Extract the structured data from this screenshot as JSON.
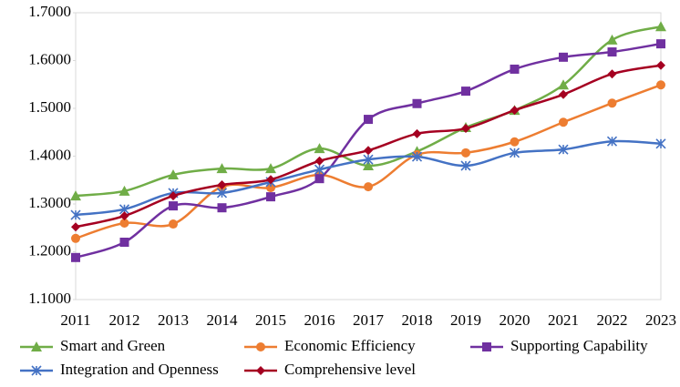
{
  "chart_data": {
    "type": "line",
    "categories": [
      "2011",
      "2012",
      "2013",
      "2014",
      "2015",
      "2016",
      "2017",
      "2018",
      "2019",
      "2020",
      "2021",
      "2022",
      "2023"
    ],
    "ylim": [
      1.1,
      1.7
    ],
    "yticks": [
      {
        "value": 1.1,
        "label": "1.1000"
      },
      {
        "value": 1.2,
        "label": "1.2000"
      },
      {
        "value": 1.3,
        "label": "1.3000"
      },
      {
        "value": 1.4,
        "label": "1.4000"
      },
      {
        "value": 1.5,
        "label": "1.5000"
      },
      {
        "value": 1.6,
        "label": "1.6000"
      },
      {
        "value": 1.7,
        "label": "1.7000"
      }
    ],
    "grid": false,
    "smooth": true,
    "legend": "bottom",
    "series": [
      {
        "name": "Smart and Green",
        "color": "#70ad47",
        "marker": "triangle",
        "values": [
          1.317,
          1.327,
          1.361,
          1.374,
          1.374,
          1.416,
          1.38,
          1.41,
          1.46,
          1.496,
          1.549,
          1.643,
          1.671
        ]
      },
      {
        "name": "Economic Efficiency",
        "color": "#ed7d31",
        "marker": "circle",
        "values": [
          1.228,
          1.26,
          1.258,
          1.336,
          1.334,
          1.361,
          1.336,
          1.403,
          1.407,
          1.43,
          1.471,
          1.511,
          1.549
        ]
      },
      {
        "name": "Supporting Capability",
        "color": "#7030a0",
        "marker": "square",
        "values": [
          1.188,
          1.22,
          1.296,
          1.292,
          1.315,
          1.353,
          1.477,
          1.51,
          1.536,
          1.582,
          1.607,
          1.618,
          1.635
        ]
      },
      {
        "name": "Integration and Openness",
        "color": "#4472c4",
        "marker": "star",
        "values": [
          1.277,
          1.289,
          1.323,
          1.323,
          1.346,
          1.372,
          1.393,
          1.399,
          1.38,
          1.407,
          1.414,
          1.431,
          1.426
        ]
      },
      {
        "name": "Comprehensive level",
        "color": "#a50021",
        "marker": "diamond",
        "values": [
          1.252,
          1.275,
          1.317,
          1.34,
          1.351,
          1.39,
          1.412,
          1.447,
          1.458,
          1.496,
          1.529,
          1.572,
          1.59
        ]
      }
    ]
  }
}
